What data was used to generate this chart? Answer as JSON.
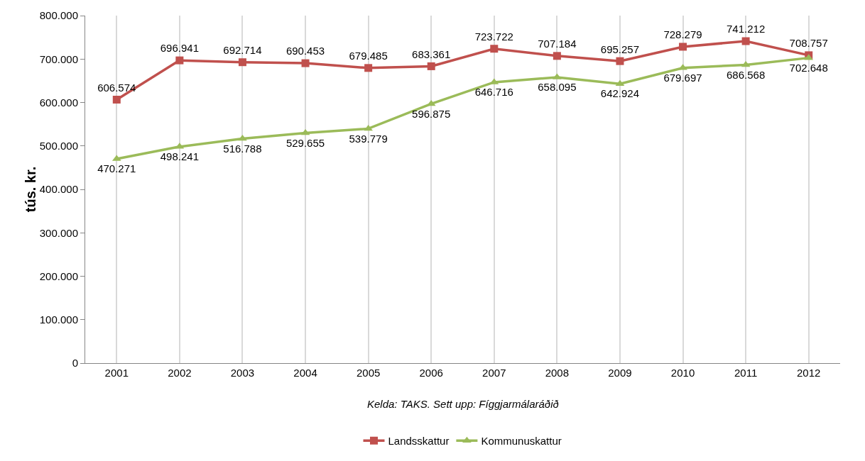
{
  "chart_data": {
    "type": "line",
    "ylabel": "tús. kr.",
    "annotations": [
      "Kelda: TAKS. Sett upp: Fíggjarmálaráðið"
    ],
    "categories": [
      "2001",
      "2002",
      "2003",
      "2004",
      "2005",
      "2006",
      "2007",
      "2008",
      "2009",
      "2010",
      "2011",
      "2012"
    ],
    "series": [
      {
        "name": "Landsskattur",
        "color": "#c0504d",
        "marker": "square",
        "values": [
          606574,
          696941,
          692714,
          690453,
          679485,
          683361,
          723722,
          707184,
          695257,
          728279,
          741212,
          708757
        ],
        "value_labels": [
          "606.574",
          "696.941",
          "692.714",
          "690.453",
          "679.485",
          "683.361",
          "723.722",
          "707.184",
          "695.257",
          "728.279",
          "741.212",
          "708.757"
        ]
      },
      {
        "name": "Kommunuskattur",
        "color": "#9bbb59",
        "marker": "triangle",
        "values": [
          470271,
          498241,
          516788,
          529655,
          539779,
          596875,
          646716,
          658095,
          642924,
          679697,
          686568,
          702648
        ],
        "value_labels": [
          "470.271",
          "498.241",
          "516.788",
          "529.655",
          "539.779",
          "596.875",
          "646.716",
          "658.095",
          "642.924",
          "679.697",
          "686.568",
          "702.648"
        ]
      }
    ],
    "ylim": [
      0,
      800000
    ],
    "yticks": [
      {
        "value": 0,
        "label": "0"
      },
      {
        "value": 100000,
        "label": "100.000"
      },
      {
        "value": 200000,
        "label": "200.000"
      },
      {
        "value": 300000,
        "label": "300.000"
      },
      {
        "value": 400000,
        "label": "400.000"
      },
      {
        "value": 500000,
        "label": "500.000"
      },
      {
        "value": 600000,
        "label": "600.000"
      },
      {
        "value": 700000,
        "label": "700.000"
      },
      {
        "value": 800000,
        "label": "800.000"
      }
    ],
    "grid": "x",
    "legend": "bottom",
    "line_style": "solid"
  }
}
